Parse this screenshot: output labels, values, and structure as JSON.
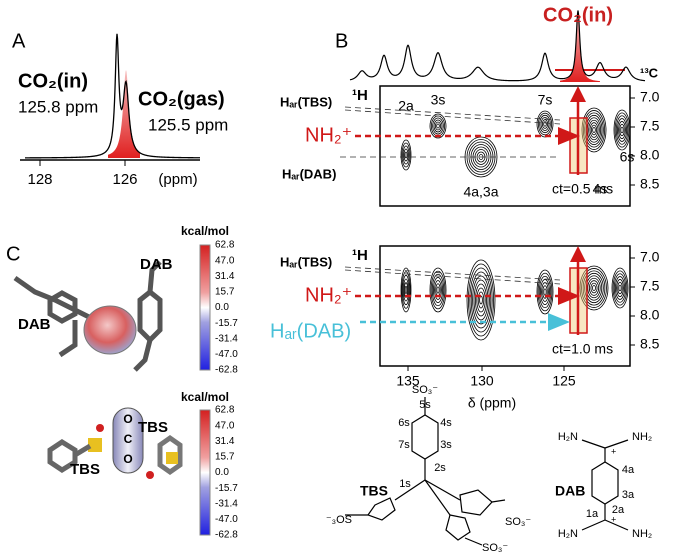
{
  "panel_a": {
    "label": "A",
    "co2_in": {
      "name": "CO₂(in)",
      "shift": "125.8 ppm"
    },
    "co2_gas": {
      "name": "CO₂(gas)",
      "shift": "125.5 ppm"
    },
    "x_axis": {
      "ticks": [
        "128",
        "126"
      ],
      "unit": "(ppm)"
    }
  },
  "panel_b": {
    "label": "B",
    "co2_in": "CO₂(in)",
    "carbon": "¹³C",
    "spectra": [
      {
        "proton": "¹H",
        "har_tbs": "Hₐᵣ(TBS)",
        "nh2": "NH₂⁺",
        "har_dab": "Hₐᵣ(DAB)",
        "peaks": [
          "2a",
          "3s",
          "7s",
          "4s",
          "6s",
          "4a,3a"
        ],
        "ct": "ct=0.5 ms",
        "y_ticks": [
          "7.0",
          "7.5",
          "8.0",
          "8.5"
        ]
      },
      {
        "proton": "¹H",
        "har_tbs": "Hₐᵣ(TBS)",
        "nh2": "NH₂⁺",
        "har_dab": "Hₐᵣ(DAB)",
        "ct": "ct=1.0 ms",
        "y_ticks": [
          "7.0",
          "7.5",
          "8.0",
          "8.5"
        ]
      }
    ],
    "x_ticks": [
      "135",
      "130",
      "125"
    ],
    "x_label": "δ (ppm)"
  },
  "panel_c": {
    "label": "C",
    "views": [
      {
        "labels": [
          "DAB",
          "DAB"
        ],
        "colorbar": {
          "title": "kcal/mol",
          "ticks": [
            "62.8",
            "47.0",
            "31.4",
            "15.7",
            "0.0",
            "-15.7",
            "-31.4",
            "-47.0",
            "-62.8"
          ]
        }
      },
      {
        "labels": [
          "TBS",
          "TBS"
        ],
        "atoms": [
          "O",
          "C",
          "O"
        ],
        "colorbar": {
          "title": "kcal/mol",
          "ticks": [
            "62.8",
            "47.0",
            "31.4",
            "15.7",
            "0.0",
            "-15.7",
            "-31.4",
            "-47.0",
            "-62.8"
          ]
        }
      }
    ]
  },
  "structures": {
    "tbs": {
      "name": "TBS",
      "groups": [
        "SO₃⁻",
        "SO₃⁻",
        "SO₃⁻",
        "⁻₃OS"
      ],
      "positions": [
        "5s",
        "6s",
        "4s",
        "7s",
        "3s",
        "2s",
        "1s"
      ]
    },
    "dab": {
      "name": "DAB",
      "groups": [
        "H₂N",
        "NH₂",
        "H₂N",
        "NH₂",
        "+",
        "+"
      ],
      "positions": [
        "4a",
        "3a",
        "2a",
        "1a"
      ]
    }
  }
}
